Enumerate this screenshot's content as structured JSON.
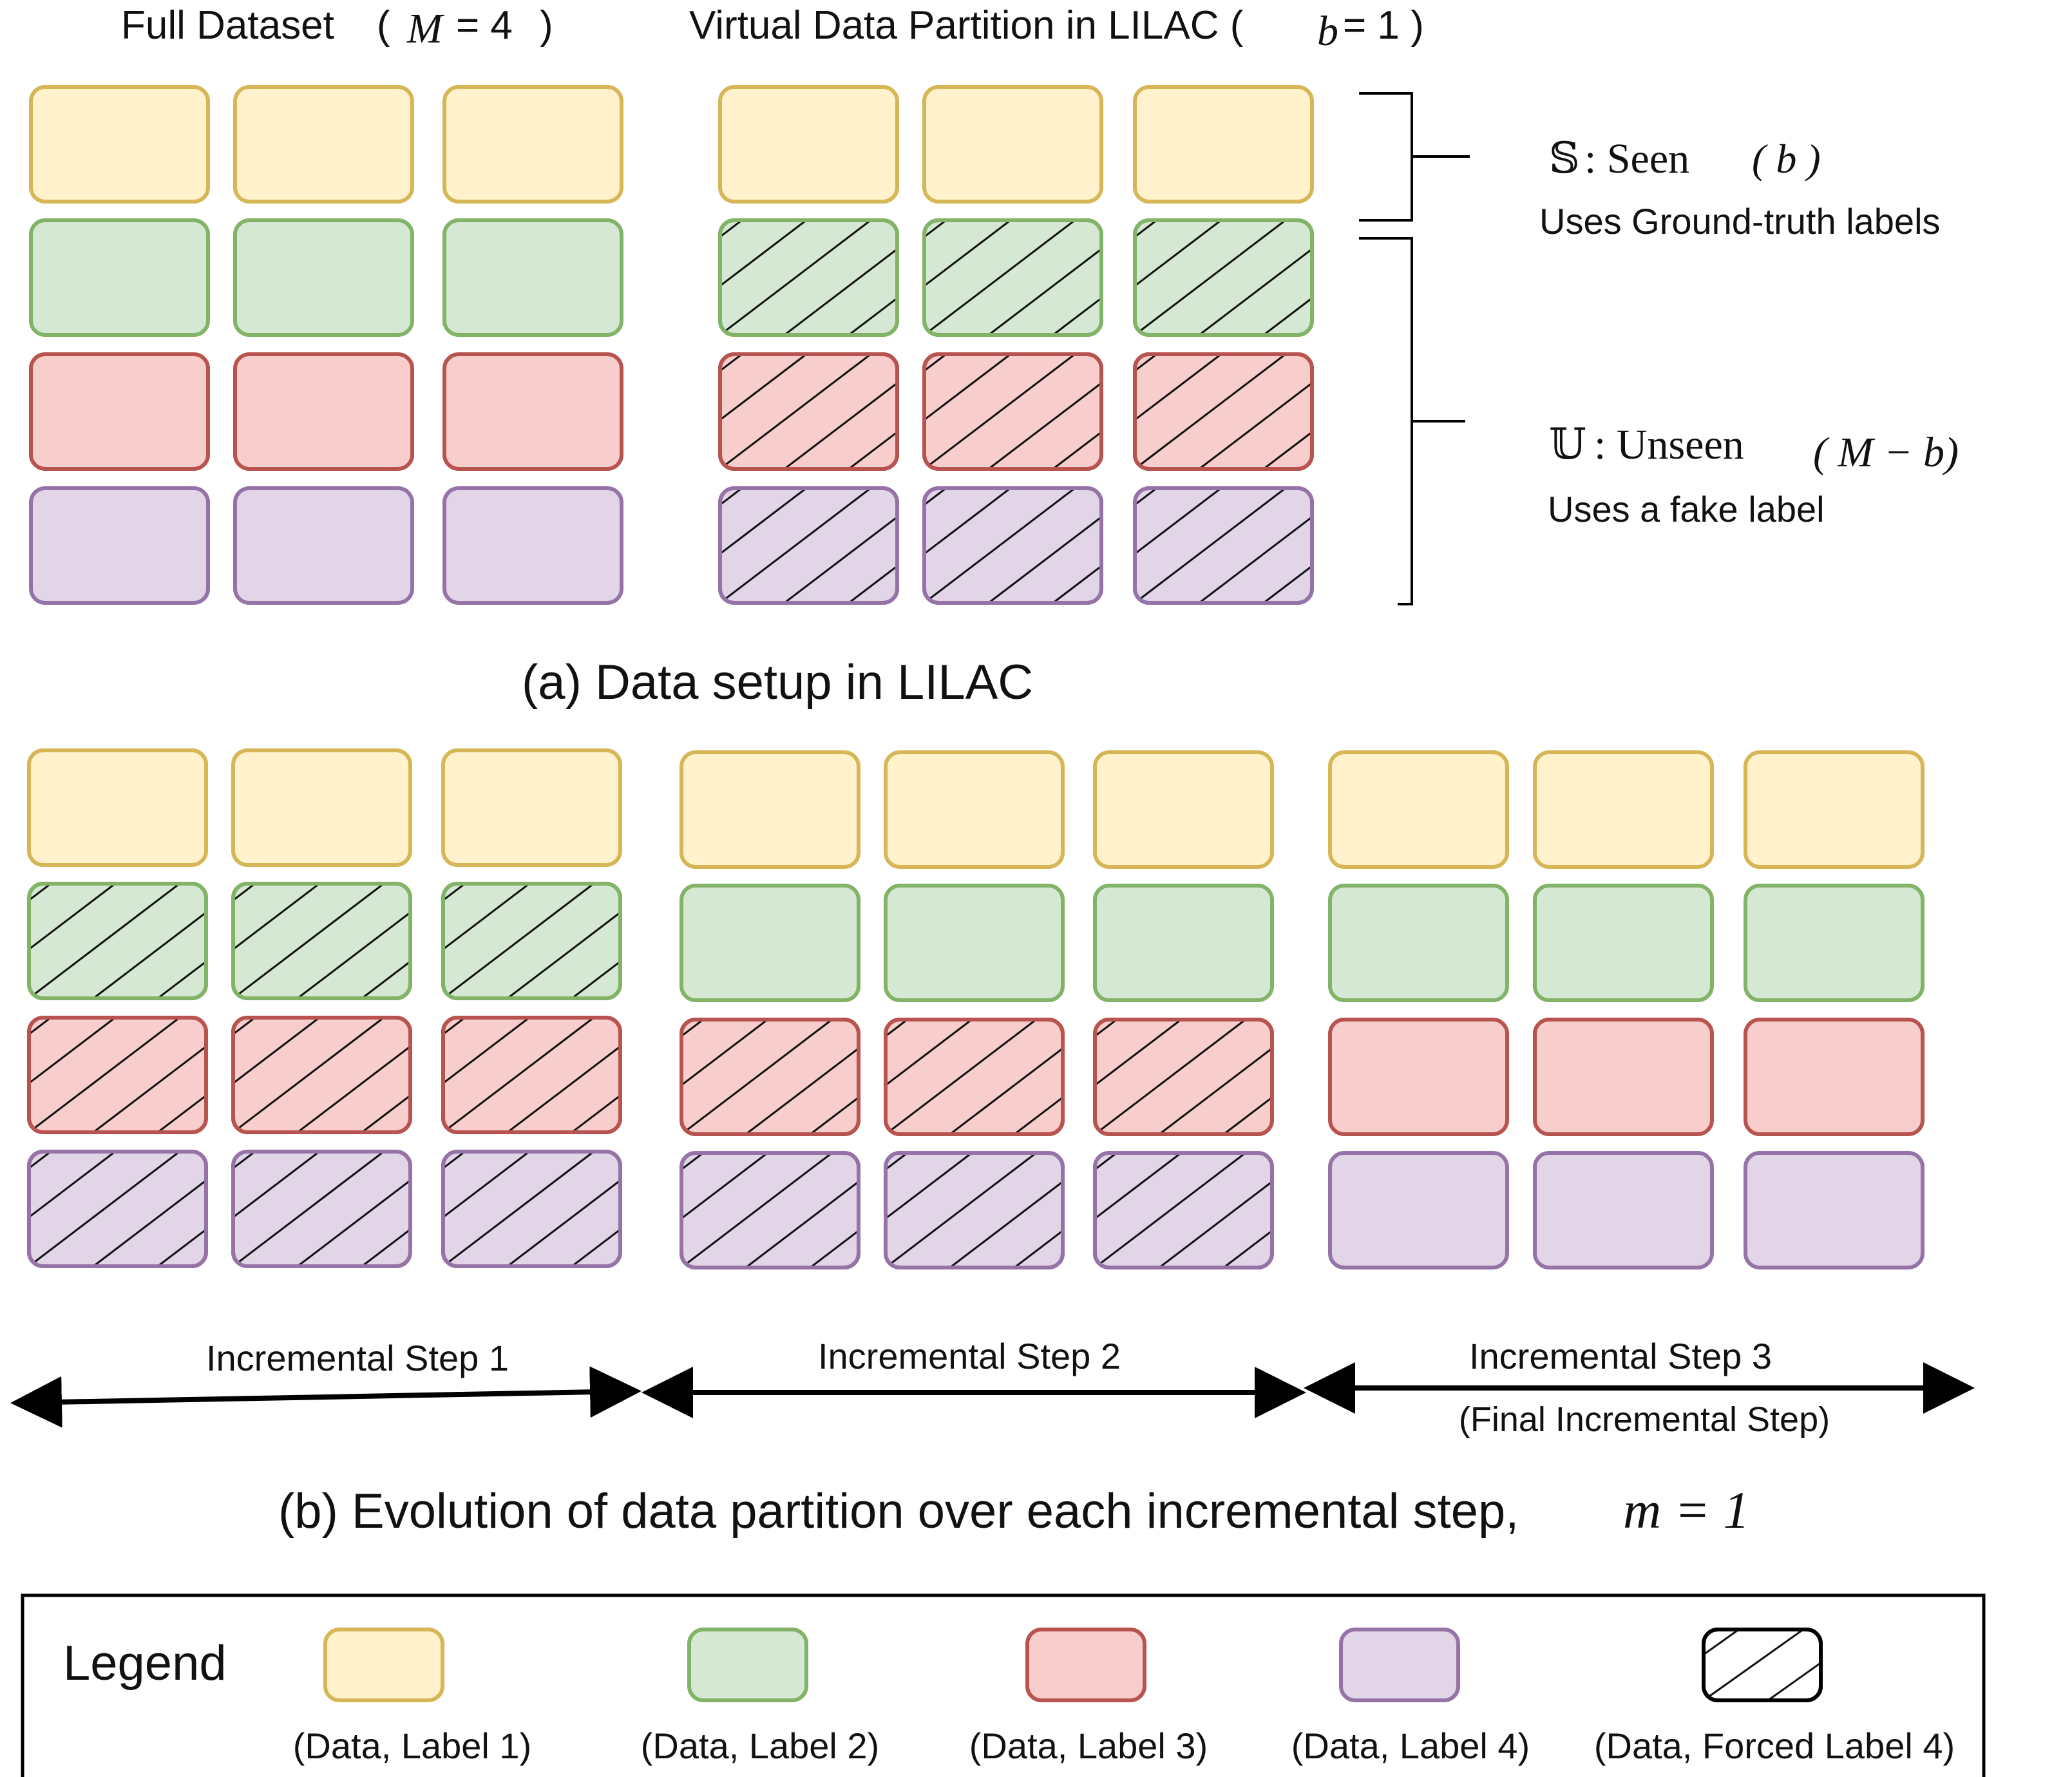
{
  "colors": {
    "label1": {
      "fill": "#fff2cc",
      "stroke": "#d6b656"
    },
    "label2": {
      "fill": "#d5e8d4",
      "stroke": "#82b366"
    },
    "label3": {
      "fill": "#f8cecc",
      "stroke": "#b85450"
    },
    "label4": {
      "fill": "#e1d5e7",
      "stroke": "#9673a6"
    },
    "hatch": "#111111"
  },
  "top": {
    "full_dataset": {
      "title": "Full Dataset",
      "math_open": "(",
      "math_var": "M",
      "math_eq": "= 4",
      "math_close": ")"
    },
    "virtual_partition": {
      "title": "Virtual Data Partition in LILAC (",
      "math_var": "b",
      "math_eq": "= 1 )"
    },
    "seen": {
      "symbol": "𝕊",
      "text": ": Seen",
      "math": "( b )",
      "desc": "Uses Ground-truth labels"
    },
    "unseen": {
      "symbol": "𝕌",
      "text": ": Unseen",
      "math": "( M − b)",
      "desc": "Uses a fake label"
    },
    "caption": "(a) Data setup in LILAC"
  },
  "bottom": {
    "steps": [
      {
        "label": "Incremental Step 1",
        "sublabel": ""
      },
      {
        "label": "Incremental Step 2",
        "sublabel": ""
      },
      {
        "label": "Incremental Step 3",
        "sublabel": "(Final Incremental Step)"
      }
    ],
    "caption_text": "(b) Evolution of  data partition over each incremental step,",
    "caption_math": "m = 1"
  },
  "grids": [
    {
      "name": "full-dataset",
      "hatched_rows": []
    },
    {
      "name": "virtual-partition",
      "hatched_rows": [
        2,
        3,
        4
      ]
    },
    {
      "name": "step-1",
      "hatched_rows": [
        2,
        3,
        4
      ]
    },
    {
      "name": "step-2",
      "hatched_rows": [
        3,
        4
      ]
    },
    {
      "name": "step-3",
      "hatched_rows": []
    }
  ],
  "legend": {
    "title": "Legend",
    "items": [
      {
        "label": "(Data, Label 1)",
        "color_key": "label1",
        "hatched": false
      },
      {
        "label": "(Data, Label 2)",
        "color_key": "label2",
        "hatched": false
      },
      {
        "label": "(Data, Label 3)",
        "color_key": "label3",
        "hatched": false
      },
      {
        "label": "(Data, Label 4)",
        "color_key": "label4",
        "hatched": false
      },
      {
        "label": "(Data, Forced Label 4)",
        "color_key": "none",
        "hatched": true
      }
    ]
  }
}
